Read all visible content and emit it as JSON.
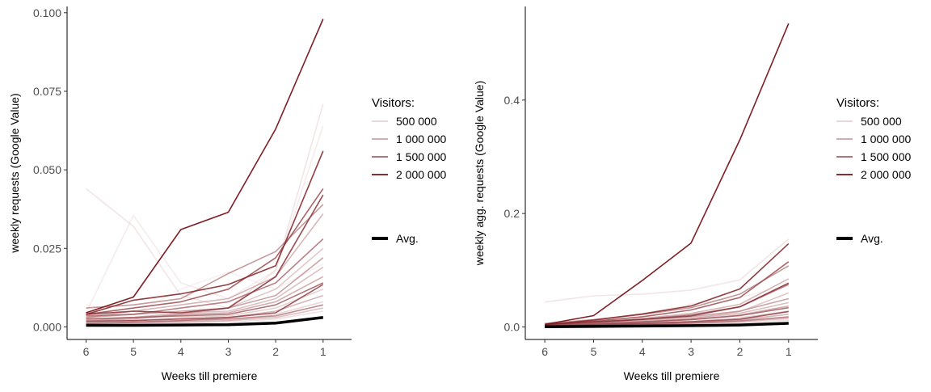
{
  "chart_data": [
    {
      "type": "line",
      "title": "",
      "xlabel": "Weeks till premiere",
      "ylabel": "weekly requests (Google Value)",
      "x": [
        6,
        5,
        4,
        3,
        2,
        1
      ],
      "x_reversed": true,
      "xlim": [
        6.4,
        0.4
      ],
      "ylim": [
        -0.004,
        0.102
      ],
      "yticks": [
        0.0,
        0.025,
        0.05,
        0.075,
        0.1
      ],
      "ytick_labels": [
        "0.000",
        "0.025",
        "0.050",
        "0.075",
        "0.100"
      ],
      "xtick_labels": [
        "6",
        "5",
        "4",
        "3",
        "2",
        "1"
      ],
      "grid": false,
      "legend_position": "right",
      "legend_title": "Visitors:",
      "legend_entries": [
        {
          "label": "500 000",
          "visitors": 500000
        },
        {
          "label": "1 000 000",
          "visitors": 1000000
        },
        {
          "label": "1 500 000",
          "visitors": 1500000
        },
        {
          "label": "2 000 000",
          "visitors": 2000000
        }
      ],
      "avg_label": "Avg.",
      "series": [
        {
          "visitors": 2100000,
          "values": [
            0.0045,
            0.0095,
            0.031,
            0.0365,
            0.063,
            0.098
          ]
        },
        {
          "visitors": 300000,
          "values": [
            0.044,
            0.032,
            0.01,
            0.006,
            0.018,
            0.071
          ]
        },
        {
          "visitors": 200000,
          "values": [
            0.0045,
            0.0355,
            0.014,
            0.009,
            0.018,
            0.064
          ]
        },
        {
          "visitors": 1900000,
          "values": [
            0.004,
            0.0085,
            0.0105,
            0.0135,
            0.0195,
            0.056
          ]
        },
        {
          "visitors": 1600000,
          "values": [
            0.004,
            0.006,
            0.008,
            0.012,
            0.022,
            0.044
          ]
        },
        {
          "visitors": 1200000,
          "values": [
            0.006,
            0.007,
            0.009,
            0.017,
            0.024,
            0.039
          ]
        },
        {
          "visitors": 900000,
          "values": [
            0.003,
            0.005,
            0.007,
            0.009,
            0.016,
            0.036
          ]
        },
        {
          "visitors": 1400000,
          "values": [
            0.0035,
            0.004,
            0.006,
            0.008,
            0.014,
            0.028
          ]
        },
        {
          "visitors": 700000,
          "values": [
            0.002,
            0.003,
            0.004,
            0.006,
            0.012,
            0.025
          ]
        },
        {
          "visitors": 1100000,
          "values": [
            0.003,
            0.004,
            0.005,
            0.006,
            0.01,
            0.022
          ]
        },
        {
          "visitors": 800000,
          "values": [
            0.0025,
            0.003,
            0.0045,
            0.005,
            0.009,
            0.019
          ]
        },
        {
          "visitors": 1000000,
          "values": [
            0.002,
            0.0025,
            0.004,
            0.0045,
            0.008,
            0.016
          ]
        },
        {
          "visitors": 1500000,
          "values": [
            0.0025,
            0.003,
            0.0035,
            0.004,
            0.007,
            0.014
          ]
        },
        {
          "visitors": 600000,
          "values": [
            0.0015,
            0.002,
            0.003,
            0.0035,
            0.006,
            0.012
          ]
        },
        {
          "visitors": 900000,
          "values": [
            0.001,
            0.0015,
            0.002,
            0.003,
            0.005,
            0.01
          ]
        },
        {
          "visitors": 500000,
          "values": [
            0.001,
            0.0012,
            0.0015,
            0.002,
            0.004,
            0.008
          ]
        },
        {
          "visitors": 1300000,
          "values": [
            0.0012,
            0.0015,
            0.002,
            0.0025,
            0.0035,
            0.007
          ]
        },
        {
          "visitors": 400000,
          "values": [
            0.0008,
            0.001,
            0.0012,
            0.0015,
            0.0025,
            0.005
          ]
        },
        {
          "visitors": 1700000,
          "values": [
            0.0018,
            0.002,
            0.0025,
            0.003,
            0.0045,
            0.0135
          ]
        },
        {
          "visitors": 800000,
          "values": [
            0.0012,
            0.0014,
            0.0016,
            0.002,
            0.003,
            0.006
          ]
        },
        {
          "visitors": 100000,
          "values": [
            0.007,
            0.004,
            0.012,
            0.0175,
            0.012,
            0.02
          ]
        },
        {
          "visitors": 1800000,
          "values": [
            0.004,
            0.005,
            0.0045,
            0.006,
            0.016,
            0.042
          ]
        }
      ],
      "avg": [
        0.0005,
        0.0005,
        0.0006,
        0.0007,
        0.0012,
        0.003
      ]
    },
    {
      "type": "line",
      "title": "",
      "xlabel": "Weeks till premiere",
      "ylabel": "weekly agg. requests (Google Value)",
      "x": [
        6,
        5,
        4,
        3,
        2,
        1
      ],
      "x_reversed": true,
      "xlim": [
        6.4,
        0.4
      ],
      "ylim": [
        -0.022,
        0.565
      ],
      "yticks": [
        0.0,
        0.2,
        0.4
      ],
      "ytick_labels": [
        "0.0",
        "0.2",
        "0.4"
      ],
      "xtick_labels": [
        "6",
        "5",
        "4",
        "3",
        "2",
        "1"
      ],
      "grid": false,
      "legend_position": "right",
      "legend_title": "Visitors:",
      "legend_entries": [
        {
          "label": "500 000",
          "visitors": 500000
        },
        {
          "label": "1 000 000",
          "visitors": 1000000
        },
        {
          "label": "1 500 000",
          "visitors": 1500000
        },
        {
          "label": "2 000 000",
          "visitors": 2000000
        }
      ],
      "avg_label": "Avg.",
      "series": [
        {
          "visitors": 2100000,
          "values": [
            0.0045,
            0.02,
            0.082,
            0.148,
            0.33,
            0.535
          ]
        },
        {
          "visitors": 300000,
          "values": [
            0.044,
            0.055,
            0.058,
            0.065,
            0.083,
            0.155
          ]
        },
        {
          "visitors": 1900000,
          "values": [
            0.004,
            0.012,
            0.023,
            0.037,
            0.067,
            0.147
          ]
        },
        {
          "visitors": 1600000,
          "values": [
            0.004,
            0.01,
            0.018,
            0.03,
            0.052,
            0.115
          ]
        },
        {
          "visitors": 1200000,
          "values": [
            0.006,
            0.013,
            0.022,
            0.034,
            0.058,
            0.108
          ]
        },
        {
          "visitors": 900000,
          "values": [
            0.003,
            0.008,
            0.015,
            0.024,
            0.04,
            0.085
          ]
        },
        {
          "visitors": 1400000,
          "values": [
            0.0035,
            0.0075,
            0.0135,
            0.0215,
            0.0355,
            0.075
          ]
        },
        {
          "visitors": 700000,
          "values": [
            0.002,
            0.005,
            0.009,
            0.015,
            0.027,
            0.06
          ]
        },
        {
          "visitors": 1100000,
          "values": [
            0.003,
            0.007,
            0.012,
            0.018,
            0.028,
            0.05
          ]
        },
        {
          "visitors": 800000,
          "values": [
            0.0025,
            0.0055,
            0.01,
            0.015,
            0.024,
            0.043
          ]
        },
        {
          "visitors": 1000000,
          "values": [
            0.002,
            0.0045,
            0.0085,
            0.013,
            0.021,
            0.037
          ]
        },
        {
          "visitors": 1500000,
          "values": [
            0.0025,
            0.0055,
            0.009,
            0.013,
            0.02,
            0.034
          ]
        },
        {
          "visitors": 600000,
          "values": [
            0.0015,
            0.0035,
            0.0065,
            0.01,
            0.016,
            0.028
          ]
        },
        {
          "visitors": 900000,
          "values": [
            0.001,
            0.0025,
            0.0045,
            0.0075,
            0.0125,
            0.0225
          ]
        },
        {
          "visitors": 500000,
          "values": [
            0.001,
            0.0022,
            0.0037,
            0.0057,
            0.0097,
            0.0177
          ]
        },
        {
          "visitors": 1300000,
          "values": [
            0.0012,
            0.0027,
            0.0047,
            0.0072,
            0.0107,
            0.0177
          ]
        },
        {
          "visitors": 400000,
          "values": [
            0.0008,
            0.0018,
            0.003,
            0.0045,
            0.007,
            0.012
          ]
        },
        {
          "visitors": 1700000,
          "values": [
            0.0018,
            0.0038,
            0.0063,
            0.0093,
            0.0138,
            0.0273
          ]
        },
        {
          "visitors": 800000,
          "values": [
            0.0012,
            0.0026,
            0.0042,
            0.0062,
            0.0092,
            0.0152
          ]
        },
        {
          "visitors": 100000,
          "values": [
            0.007,
            0.011,
            0.023,
            0.0405,
            0.0525,
            0.0725
          ]
        },
        {
          "visitors": 1800000,
          "values": [
            0.004,
            0.009,
            0.0135,
            0.0195,
            0.0355,
            0.0775
          ]
        }
      ],
      "avg": [
        0.0005,
        0.001,
        0.0016,
        0.0023,
        0.0035,
        0.0065
      ]
    }
  ]
}
